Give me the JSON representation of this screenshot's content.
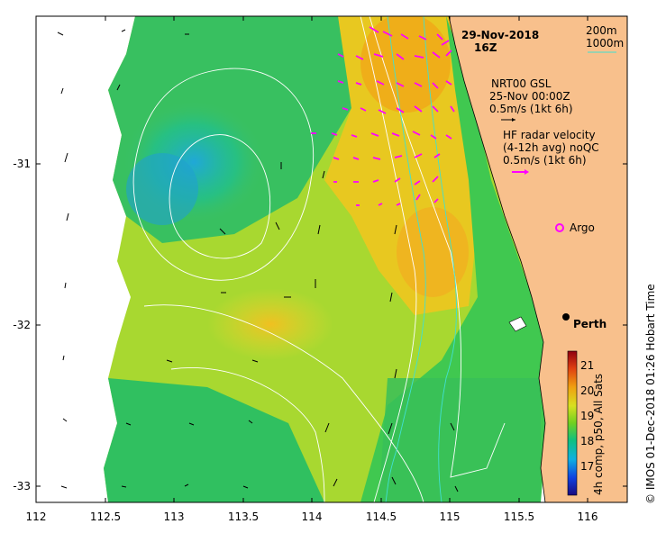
{
  "map": {
    "date": "29-Nov-2018",
    "time": "16Z",
    "legend_200m": "200m",
    "legend_1000m": "1000m",
    "gsl_title": "NRT00 GSL",
    "gsl_date": "25-Nov 00:00Z",
    "gsl_scale": "0.5m/s (1kt 6h)",
    "hf_title": "HF radar velocity",
    "hf_sub": "(4-12h avg) noQC",
    "hf_scale": "0.5m/s (1kt 6h)",
    "argo_label": "Argo",
    "city_label": "Perth",
    "colorbar_label": "4h comp, p50, All Sats",
    "credit": "© IMOS 01-Dec-2018 01:26 Hobart Time",
    "x_ticks": [
      "112",
      "112.5",
      "113",
      "113.5",
      "114",
      "114.5",
      "115",
      "115.5",
      "116"
    ],
    "y_ticks": [
      "-31",
      "-32",
      "-33"
    ],
    "colorbar_ticks": [
      "17",
      "18",
      "19",
      "20",
      "21"
    ],
    "colors": {
      "land": "#f8c08c",
      "contour": "#ffffff",
      "isobath_200": "#40e0d0",
      "hf_vector": "#ff00ff",
      "gsl_vector": "#000000"
    }
  }
}
